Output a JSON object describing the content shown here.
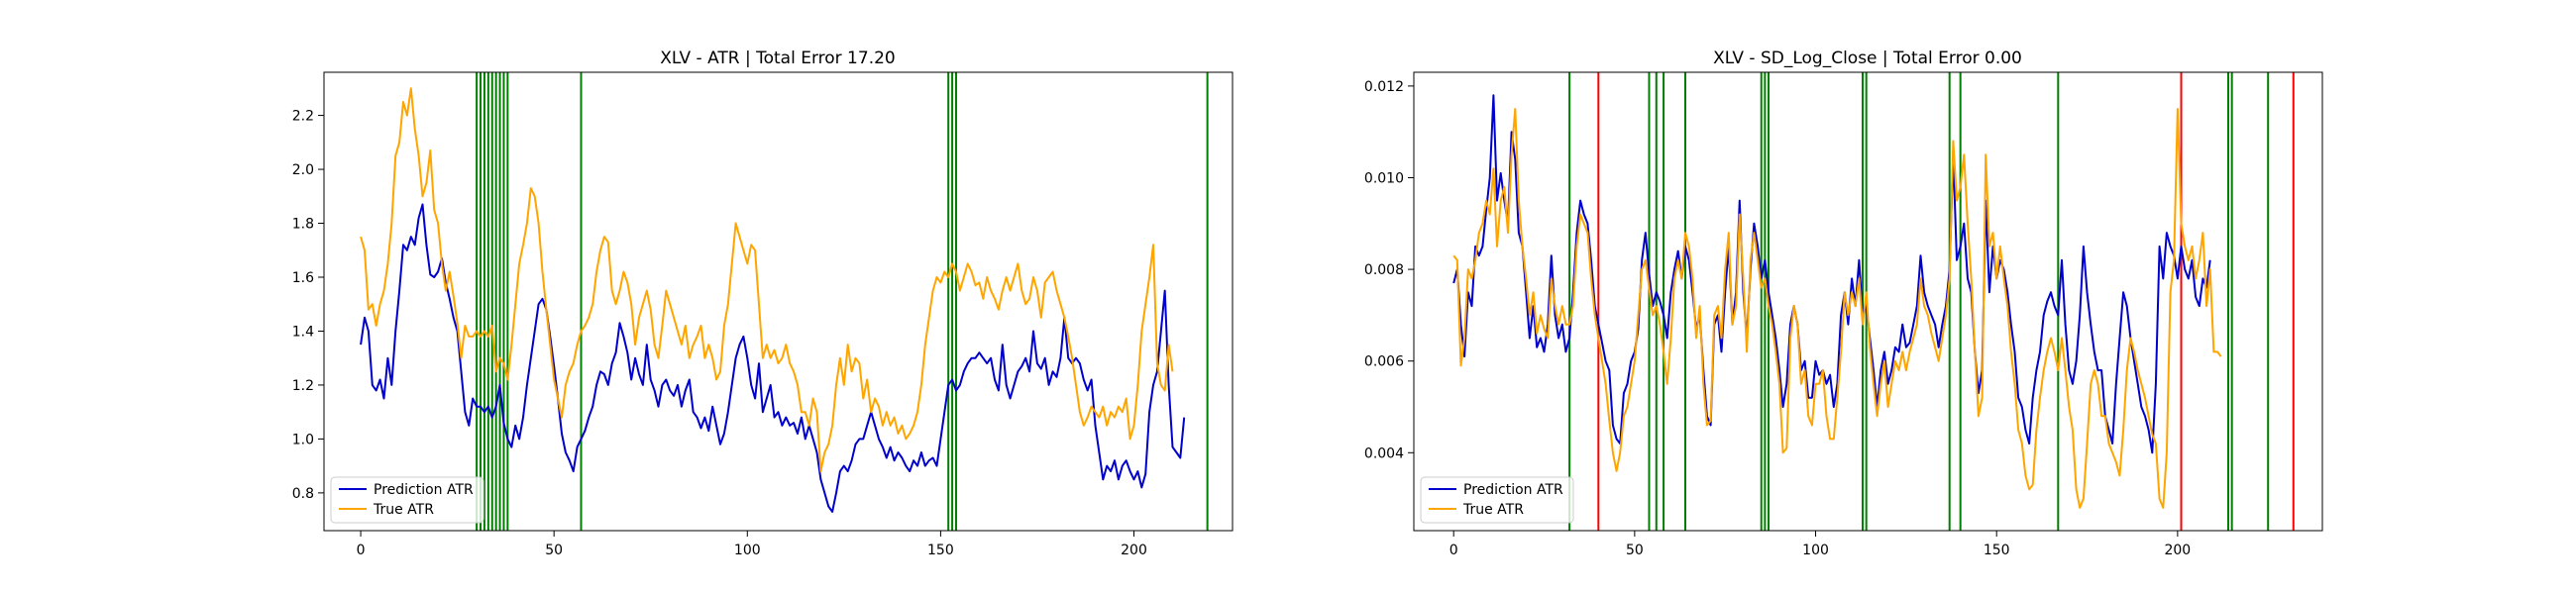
{
  "figure": {
    "background": "#ffffff"
  },
  "chart_data": [
    {
      "type": "line",
      "title": "XLV - ATR | Total Error 17.20",
      "xlabel": "",
      "ylabel": "",
      "xlim": [
        -9.5,
        225.5
      ],
      "ylim": [
        0.66,
        2.36
      ],
      "xticks": [
        0,
        50,
        100,
        150,
        200
      ],
      "yticks": [
        0.8,
        1.0,
        1.2,
        1.4,
        1.6,
        1.8,
        2.0,
        2.2
      ],
      "ytick_decimals": 1,
      "grid": false,
      "legend": "lower-left",
      "series": [
        {
          "name": "Prediction ATR",
          "color": "#0000cc",
          "x_start": 0,
          "values": [
            1.35,
            1.45,
            1.4,
            1.2,
            1.18,
            1.22,
            1.15,
            1.3,
            1.2,
            1.4,
            1.55,
            1.72,
            1.7,
            1.75,
            1.72,
            1.82,
            1.87,
            1.72,
            1.61,
            1.6,
            1.62,
            1.67,
            1.58,
            1.52,
            1.45,
            1.4,
            1.25,
            1.1,
            1.05,
            1.15,
            1.12,
            1.12,
            1.1,
            1.12,
            1.08,
            1.12,
            1.2,
            1.06,
            1.0,
            0.97,
            1.05,
            1.0,
            1.08,
            1.2,
            1.3,
            1.4,
            1.5,
            1.52,
            1.48,
            1.38,
            1.27,
            1.15,
            1.02,
            0.95,
            0.92,
            0.88,
            0.97,
            1.0,
            1.03,
            1.08,
            1.12,
            1.2,
            1.25,
            1.24,
            1.2,
            1.28,
            1.32,
            1.43,
            1.38,
            1.32,
            1.22,
            1.3,
            1.24,
            1.2,
            1.35,
            1.22,
            1.18,
            1.12,
            1.2,
            1.22,
            1.18,
            1.16,
            1.2,
            1.12,
            1.18,
            1.22,
            1.1,
            1.08,
            1.04,
            1.08,
            1.03,
            1.12,
            1.05,
            0.98,
            1.02,
            1.1,
            1.2,
            1.3,
            1.35,
            1.38,
            1.3,
            1.2,
            1.15,
            1.28,
            1.1,
            1.15,
            1.2,
            1.08,
            1.1,
            1.05,
            1.08,
            1.05,
            1.06,
            1.02,
            1.08,
            1.0,
            1.05,
            1.0,
            0.95,
            0.85,
            0.8,
            0.75,
            0.73,
            0.8,
            0.88,
            0.9,
            0.88,
            0.92,
            0.98,
            1.0,
            1.0,
            1.05,
            1.1,
            1.05,
            1.0,
            0.97,
            0.93,
            0.97,
            0.92,
            0.95,
            0.93,
            0.9,
            0.88,
            0.92,
            0.9,
            0.95,
            0.9,
            0.92,
            0.93,
            0.9,
            1.0,
            1.1,
            1.2,
            1.22,
            1.18,
            1.2,
            1.25,
            1.28,
            1.3,
            1.3,
            1.32,
            1.3,
            1.28,
            1.3,
            1.22,
            1.18,
            1.35,
            1.2,
            1.15,
            1.2,
            1.25,
            1.27,
            1.3,
            1.25,
            1.4,
            1.28,
            1.26,
            1.3,
            1.2,
            1.25,
            1.23,
            1.3,
            1.45,
            1.3,
            1.28,
            1.3,
            1.28,
            1.22,
            1.18,
            1.22,
            1.05,
            0.95,
            0.85,
            0.9,
            0.88,
            0.92,
            0.85,
            0.9,
            0.92,
            0.88,
            0.85,
            0.88,
            0.82,
            0.87,
            1.1,
            1.2,
            1.25,
            1.4,
            1.55,
            1.2,
            0.97,
            0.95,
            0.93,
            1.08
          ]
        },
        {
          "name": "True ATR",
          "color": "#ffa500",
          "x_start": 0,
          "values": [
            1.75,
            1.7,
            1.48,
            1.5,
            1.42,
            1.5,
            1.55,
            1.65,
            1.8,
            2.05,
            2.1,
            2.25,
            2.2,
            2.3,
            2.15,
            2.05,
            1.9,
            1.95,
            2.07,
            1.85,
            1.8,
            1.65,
            1.55,
            1.62,
            1.53,
            1.43,
            1.3,
            1.42,
            1.38,
            1.38,
            1.4,
            1.38,
            1.4,
            1.38,
            1.42,
            1.25,
            1.3,
            1.28,
            1.22,
            1.35,
            1.5,
            1.65,
            1.72,
            1.8,
            1.93,
            1.9,
            1.8,
            1.62,
            1.48,
            1.35,
            1.22,
            1.15,
            1.08,
            1.2,
            1.25,
            1.28,
            1.35,
            1.4,
            1.42,
            1.45,
            1.5,
            1.62,
            1.7,
            1.75,
            1.73,
            1.55,
            1.5,
            1.55,
            1.62,
            1.58,
            1.5,
            1.35,
            1.45,
            1.5,
            1.55,
            1.48,
            1.35,
            1.3,
            1.42,
            1.55,
            1.5,
            1.45,
            1.4,
            1.35,
            1.42,
            1.3,
            1.35,
            1.38,
            1.42,
            1.3,
            1.35,
            1.3,
            1.22,
            1.25,
            1.42,
            1.5,
            1.65,
            1.8,
            1.75,
            1.7,
            1.65,
            1.72,
            1.7,
            1.5,
            1.3,
            1.35,
            1.3,
            1.33,
            1.28,
            1.3,
            1.35,
            1.28,
            1.25,
            1.2,
            1.1,
            1.1,
            1.05,
            1.15,
            1.1,
            0.88,
            0.95,
            0.98,
            1.05,
            1.2,
            1.3,
            1.2,
            1.35,
            1.25,
            1.3,
            1.28,
            1.15,
            1.22,
            1.1,
            1.15,
            1.12,
            1.05,
            1.1,
            1.05,
            1.08,
            1.02,
            1.05,
            1.0,
            1.02,
            1.05,
            1.1,
            1.2,
            1.35,
            1.45,
            1.55,
            1.6,
            1.58,
            1.62,
            1.6,
            1.65,
            1.62,
            1.55,
            1.6,
            1.65,
            1.62,
            1.57,
            1.58,
            1.52,
            1.6,
            1.55,
            1.52,
            1.48,
            1.55,
            1.6,
            1.55,
            1.6,
            1.65,
            1.55,
            1.5,
            1.52,
            1.6,
            1.55,
            1.45,
            1.58,
            1.6,
            1.62,
            1.55,
            1.5,
            1.45,
            1.38,
            1.3,
            1.2,
            1.1,
            1.05,
            1.08,
            1.12,
            1.1,
            1.08,
            1.12,
            1.05,
            1.1,
            1.08,
            1.12,
            1.1,
            1.15,
            1.0,
            1.05,
            1.2,
            1.4,
            1.5,
            1.6,
            1.72,
            1.28,
            1.2,
            1.18,
            1.35,
            1.25
          ]
        }
      ],
      "vlines": [
        {
          "x": 30,
          "color": "#008000"
        },
        {
          "x": 31,
          "color": "#008000"
        },
        {
          "x": 32,
          "color": "#008000"
        },
        {
          "x": 33,
          "color": "#008000"
        },
        {
          "x": 34,
          "color": "#008000"
        },
        {
          "x": 35,
          "color": "#008000"
        },
        {
          "x": 36,
          "color": "#008000"
        },
        {
          "x": 37,
          "color": "#008000"
        },
        {
          "x": 38,
          "color": "#008000"
        },
        {
          "x": 57,
          "color": "#008000"
        },
        {
          "x": 152,
          "color": "#008000"
        },
        {
          "x": 153,
          "color": "#008000"
        },
        {
          "x": 154,
          "color": "#008000"
        },
        {
          "x": 219,
          "color": "#008000"
        }
      ]
    },
    {
      "type": "line",
      "title": "XLV - SD_Log_Close | Total Error 0.00",
      "xlabel": "",
      "ylabel": "",
      "xlim": [
        -11,
        240
      ],
      "ylim": [
        0.0023,
        0.0123
      ],
      "xticks": [
        0,
        50,
        100,
        150,
        200
      ],
      "yticks": [
        0.004,
        0.006,
        0.008,
        0.01,
        0.012
      ],
      "ytick_decimals": 3,
      "grid": false,
      "legend": "lower-left",
      "series": [
        {
          "name": "Prediction ATR",
          "color": "#0000cc",
          "x_start": 0,
          "values": [
            0.0077,
            0.008,
            0.0068,
            0.0061,
            0.0075,
            0.0072,
            0.0085,
            0.0083,
            0.0085,
            0.0093,
            0.01,
            0.0118,
            0.0095,
            0.0101,
            0.0095,
            0.009,
            0.011,
            0.0104,
            0.0088,
            0.0085,
            0.0075,
            0.0065,
            0.0072,
            0.0063,
            0.0065,
            0.0062,
            0.0068,
            0.0083,
            0.007,
            0.0065,
            0.0068,
            0.0062,
            0.0065,
            0.0075,
            0.0088,
            0.0095,
            0.0092,
            0.009,
            0.0082,
            0.0072,
            0.0068,
            0.0064,
            0.006,
            0.0058,
            0.0046,
            0.0043,
            0.0042,
            0.0053,
            0.0055,
            0.006,
            0.0062,
            0.0067,
            0.0082,
            0.0088,
            0.0079,
            0.0072,
            0.0075,
            0.0073,
            0.007,
            0.0065,
            0.0075,
            0.008,
            0.0084,
            0.0078,
            0.0085,
            0.0082,
            0.0075,
            0.0067,
            0.007,
            0.0058,
            0.0048,
            0.0046,
            0.0068,
            0.007,
            0.0062,
            0.0075,
            0.0085,
            0.0068,
            0.0075,
            0.0095,
            0.0075,
            0.0065,
            0.008,
            0.009,
            0.0085,
            0.0078,
            0.0082,
            0.0075,
            0.007,
            0.0065,
            0.0058,
            0.005,
            0.0055,
            0.0068,
            0.0072,
            0.0068,
            0.0058,
            0.006,
            0.0052,
            0.0052,
            0.006,
            0.0057,
            0.0058,
            0.0055,
            0.0057,
            0.005,
            0.0055,
            0.007,
            0.0075,
            0.0068,
            0.0078,
            0.0072,
            0.0082,
            0.007,
            0.0072,
            0.0065,
            0.0058,
            0.005,
            0.0058,
            0.0062,
            0.0055,
            0.0058,
            0.0063,
            0.0062,
            0.0068,
            0.0063,
            0.0064,
            0.0068,
            0.0072,
            0.0083,
            0.0075,
            0.0072,
            0.007,
            0.0068,
            0.0063,
            0.0068,
            0.0072,
            0.008,
            0.0105,
            0.0082,
            0.0085,
            0.009,
            0.0078,
            0.0075,
            0.0062,
            0.0053,
            0.0058,
            0.0095,
            0.0075,
            0.0085,
            0.0078,
            0.0082,
            0.008,
            0.0075,
            0.0068,
            0.0062,
            0.0052,
            0.005,
            0.0045,
            0.0042,
            0.0052,
            0.0058,
            0.0062,
            0.007,
            0.0073,
            0.0075,
            0.0072,
            0.007,
            0.0082,
            0.0068,
            0.0058,
            0.0055,
            0.006,
            0.007,
            0.0085,
            0.0075,
            0.0068,
            0.0062,
            0.0058,
            0.0058,
            0.0048,
            0.0045,
            0.0042,
            0.0055,
            0.0065,
            0.0075,
            0.0072,
            0.0065,
            0.006,
            0.0055,
            0.005,
            0.0048,
            0.0045,
            0.004,
            0.0055,
            0.0085,
            0.0078,
            0.0088,
            0.0085,
            0.0083,
            0.0078,
            0.0085,
            0.008,
            0.0078,
            0.0082,
            0.0074,
            0.0072,
            0.0078,
            0.0076,
            0.0082
          ]
        },
        {
          "name": "True ATR",
          "color": "#ffa500",
          "x_start": 0,
          "values": [
            0.0083,
            0.0082,
            0.0059,
            0.0065,
            0.008,
            0.0078,
            0.0082,
            0.0088,
            0.009,
            0.0095,
            0.0092,
            0.0102,
            0.0085,
            0.0095,
            0.0098,
            0.0088,
            0.0105,
            0.0115,
            0.0095,
            0.0085,
            0.0078,
            0.007,
            0.0075,
            0.0066,
            0.007,
            0.0067,
            0.0065,
            0.0078,
            0.0072,
            0.0068,
            0.0072,
            0.0068,
            0.0068,
            0.0072,
            0.0085,
            0.0092,
            0.009,
            0.0088,
            0.0078,
            0.007,
            0.0065,
            0.006,
            0.0055,
            0.0047,
            0.004,
            0.0036,
            0.004,
            0.0048,
            0.005,
            0.0055,
            0.006,
            0.007,
            0.008,
            0.0082,
            0.0076,
            0.007,
            0.0072,
            0.0068,
            0.0062,
            0.0055,
            0.0065,
            0.0078,
            0.0082,
            0.0078,
            0.0088,
            0.0085,
            0.0078,
            0.0065,
            0.0072,
            0.0055,
            0.0046,
            0.0047,
            0.007,
            0.0072,
            0.0065,
            0.008,
            0.0088,
            0.0068,
            0.0072,
            0.0092,
            0.0078,
            0.0062,
            0.0082,
            0.0088,
            0.0082,
            0.0076,
            0.0078,
            0.0072,
            0.0068,
            0.0062,
            0.0055,
            0.004,
            0.0041,
            0.0065,
            0.0072,
            0.0068,
            0.0055,
            0.0058,
            0.0048,
            0.0046,
            0.0055,
            0.0055,
            0.0058,
            0.0048,
            0.0043,
            0.0043,
            0.0052,
            0.0062,
            0.0075,
            0.007,
            0.0075,
            0.0072,
            0.0078,
            0.0068,
            0.0075,
            0.0063,
            0.0055,
            0.0048,
            0.0055,
            0.006,
            0.005,
            0.0055,
            0.006,
            0.0058,
            0.0062,
            0.0058,
            0.0062,
            0.0065,
            0.0068,
            0.0078,
            0.0072,
            0.007,
            0.0066,
            0.0063,
            0.006,
            0.0065,
            0.007,
            0.0078,
            0.0108,
            0.0095,
            0.0098,
            0.0105,
            0.009,
            0.0078,
            0.0062,
            0.0048,
            0.0052,
            0.0105,
            0.0085,
            0.0088,
            0.0078,
            0.0085,
            0.0078,
            0.0072,
            0.0062,
            0.0055,
            0.0045,
            0.0042,
            0.0035,
            0.0032,
            0.0033,
            0.0045,
            0.0052,
            0.0058,
            0.0062,
            0.0065,
            0.0062,
            0.0058,
            0.0065,
            0.0058,
            0.005,
            0.0045,
            0.0032,
            0.0028,
            0.003,
            0.0042,
            0.0055,
            0.0058,
            0.0055,
            0.0048,
            0.0048,
            0.0042,
            0.004,
            0.0038,
            0.0035,
            0.0045,
            0.0058,
            0.0065,
            0.0062,
            0.0058,
            0.0055,
            0.0052,
            0.0048,
            0.0044,
            0.0042,
            0.003,
            0.0028,
            0.004,
            0.0075,
            0.0082,
            0.0115,
            0.009,
            0.0085,
            0.0082,
            0.0085,
            0.0078,
            0.0082,
            0.0088,
            0.0072,
            0.008,
            0.0062,
            0.0062,
            0.0061
          ]
        }
      ],
      "vlines": [
        {
          "x": 32,
          "color": "#008000"
        },
        {
          "x": 40,
          "color": "#ff0000"
        },
        {
          "x": 54,
          "color": "#008000"
        },
        {
          "x": 56,
          "color": "#008000"
        },
        {
          "x": 58,
          "color": "#008000"
        },
        {
          "x": 64,
          "color": "#008000"
        },
        {
          "x": 85,
          "color": "#008000"
        },
        {
          "x": 86,
          "color": "#008000"
        },
        {
          "x": 87,
          "color": "#008000"
        },
        {
          "x": 113,
          "color": "#008000"
        },
        {
          "x": 114,
          "color": "#008000"
        },
        {
          "x": 137,
          "color": "#008000"
        },
        {
          "x": 140,
          "color": "#008000"
        },
        {
          "x": 167,
          "color": "#008000"
        },
        {
          "x": 201,
          "color": "#ff0000"
        },
        {
          "x": 214,
          "color": "#008000"
        },
        {
          "x": 215,
          "color": "#008000"
        },
        {
          "x": 225,
          "color": "#008000"
        },
        {
          "x": 232,
          "color": "#ff0000"
        }
      ]
    }
  ]
}
